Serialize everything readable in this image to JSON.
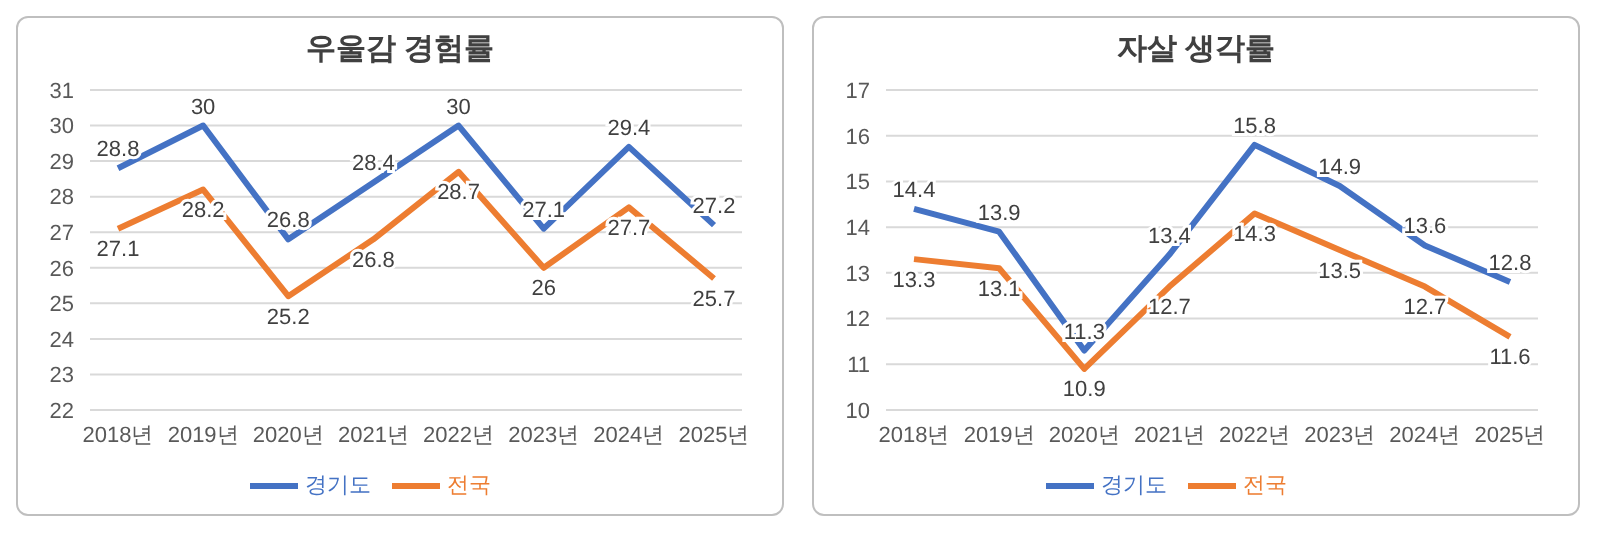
{
  "chart_data": [
    {
      "type": "line",
      "title": "우울감 경험률",
      "categories": [
        "2018년",
        "2019년",
        "2020년",
        "2021년",
        "2022년",
        "2023년",
        "2024년",
        "2025년"
      ],
      "series": [
        {
          "name": "경기도",
          "color": "#4472c4",
          "values": [
            28.8,
            30,
            26.8,
            28.4,
            30,
            27.1,
            29.4,
            27.2
          ]
        },
        {
          "name": "전국",
          "color": "#ed7d31",
          "values": [
            27.1,
            28.2,
            25.2,
            26.8,
            28.7,
            26,
            27.7,
            25.7
          ]
        }
      ],
      "ylim": [
        22,
        31
      ],
      "yticks": [
        22,
        23,
        24,
        25,
        26,
        27,
        28,
        29,
        30,
        31
      ],
      "grid": "y",
      "legend": "bottom",
      "marker": "none",
      "data_labels": true
    },
    {
      "type": "line",
      "title": "자살 생각률",
      "categories": [
        "2018년",
        "2019년",
        "2020년",
        "2021년",
        "2022년",
        "2023년",
        "2024년",
        "2025년"
      ],
      "series": [
        {
          "name": "경기도",
          "color": "#4472c4",
          "values": [
            14.4,
            13.9,
            11.3,
            13.4,
            15.8,
            14.9,
            13.6,
            12.8
          ]
        },
        {
          "name": "전국",
          "color": "#ed7d31",
          "values": [
            13.3,
            13.1,
            10.9,
            12.7,
            14.3,
            13.5,
            12.7,
            11.6
          ]
        }
      ],
      "ylim": [
        10,
        17
      ],
      "yticks": [
        10,
        11,
        12,
        13,
        14,
        15,
        16,
        17
      ],
      "grid": "y",
      "legend": "bottom",
      "marker": "none",
      "data_labels": true
    }
  ]
}
